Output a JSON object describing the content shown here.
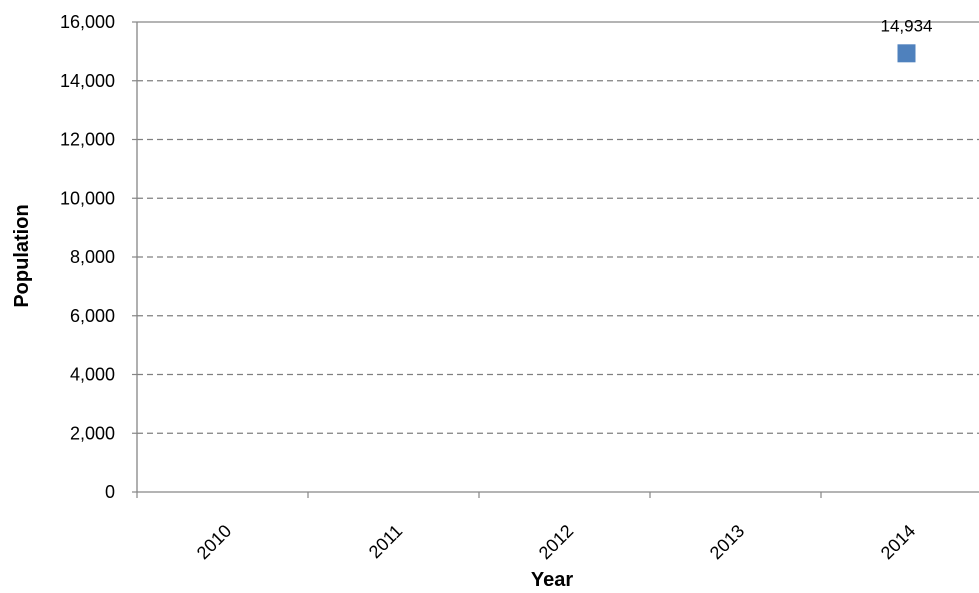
{
  "chart_data": {
    "type": "scatter",
    "title": "",
    "xlabel": "Year",
    "ylabel": "Population",
    "categories": [
      "2010",
      "2011",
      "2012",
      "2013",
      "2014"
    ],
    "ylim": [
      0,
      16000
    ],
    "yticks": [
      "0",
      "2,000",
      "4,000",
      "6,000",
      "8,000",
      "10,000",
      "12,000",
      "14,000",
      "16,000"
    ],
    "ytick_values": [
      0,
      2000,
      4000,
      6000,
      8000,
      10000,
      12000,
      14000,
      16000
    ],
    "grid": true,
    "grid_style": "dashed",
    "legend": "none",
    "series": [
      {
        "marker": "square",
        "color": "#4f81bd",
        "points": [
          {
            "x": "2014",
            "y": 14934,
            "label": "14,934"
          }
        ]
      }
    ]
  }
}
